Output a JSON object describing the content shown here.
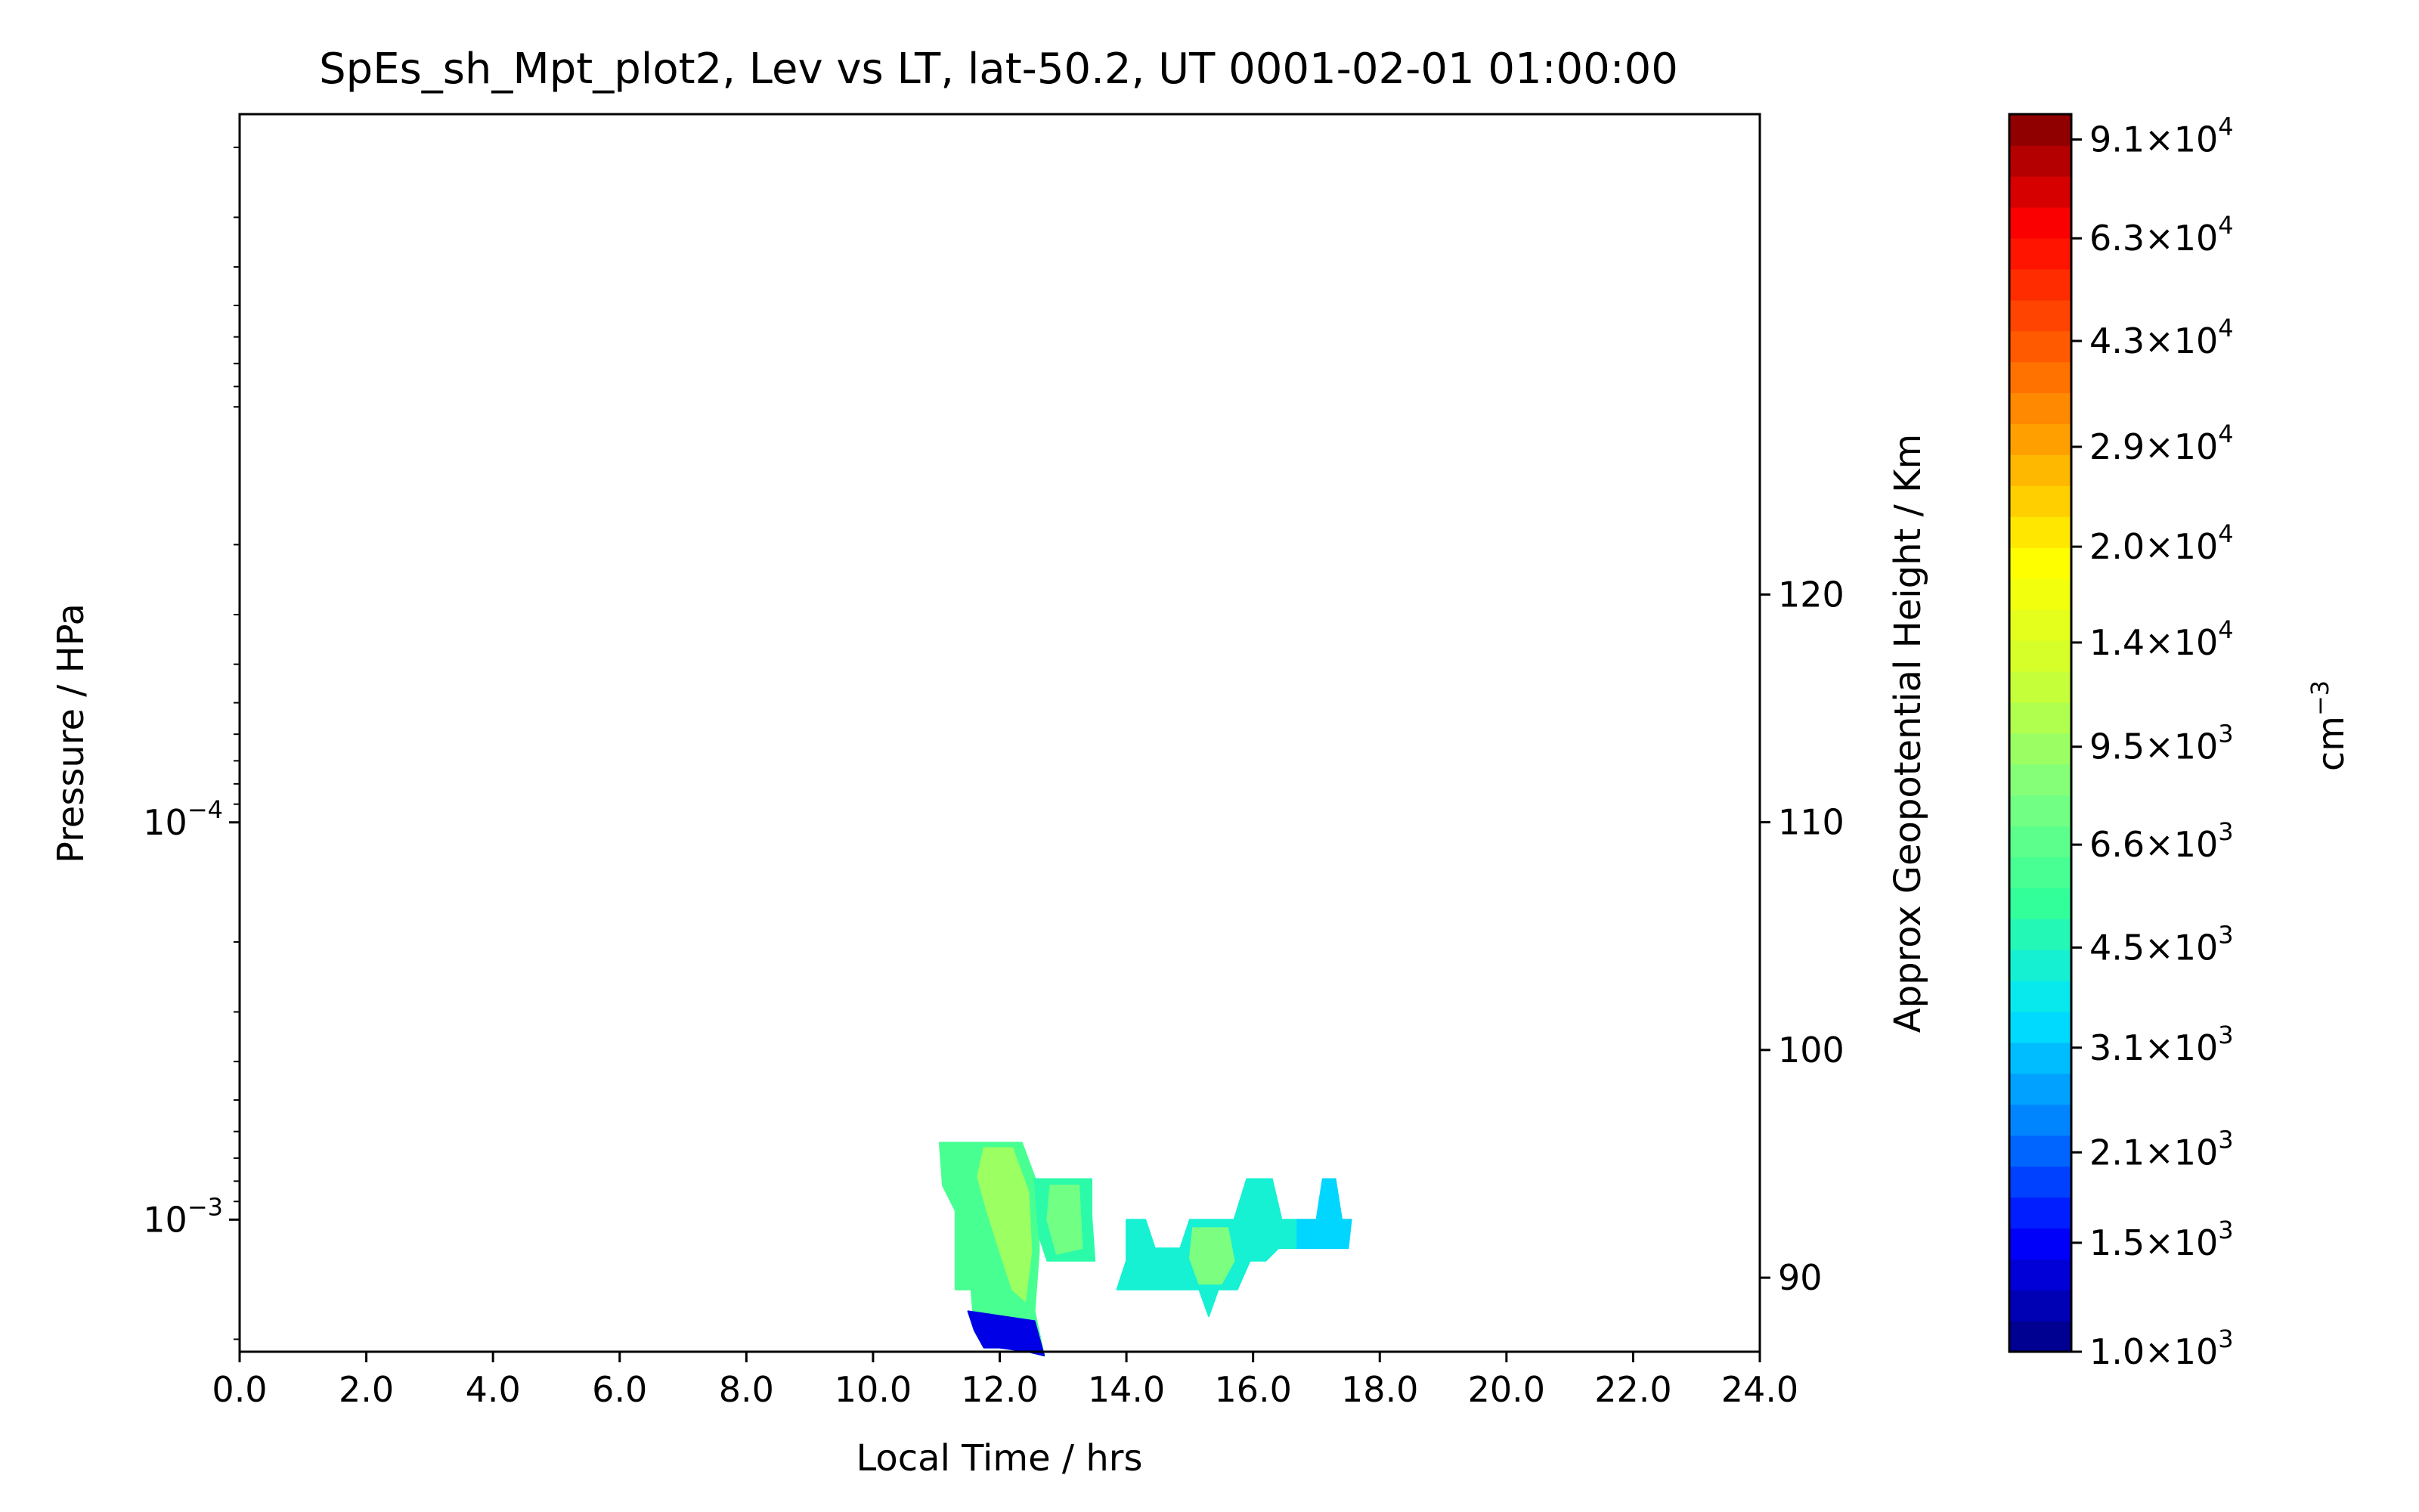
{
  "chart_data": {
    "type": "heatmap",
    "title": "SpEs_sh_Mpt_plot2, Lev vs LT, lat-50.2, UT 0001-02-01 01:00:00",
    "xlabel": "Local Time / hrs",
    "ylabel": "Pressure / HPa",
    "y2label": "Approx Geopotential Height / Km",
    "colorbar_label": "cm",
    "colorbar_label_exp": "−3",
    "xlim": [
      0,
      24
    ],
    "x_ticks": [
      "0.0",
      "2.0",
      "4.0",
      "6.0",
      "8.0",
      "10.0",
      "12.0",
      "14.0",
      "16.0",
      "18.0",
      "20.0",
      "22.0",
      "24.0"
    ],
    "y_scale": "log",
    "ylim": [
      0.00215,
      1.65e-06
    ],
    "y_ticks": [
      {
        "value": 0.0001,
        "base": "10",
        "exp": "−4"
      },
      {
        "value": 0.001,
        "base": "10",
        "exp": "−3"
      }
    ],
    "y2_ticks": [
      {
        "value": 120,
        "label": "120"
      },
      {
        "value": 110,
        "label": "110"
      },
      {
        "value": 100,
        "label": "100"
      },
      {
        "value": 90,
        "label": "90"
      }
    ],
    "y2_ref": [
      {
        "height": 120,
        "pressure": 2.67e-05
      },
      {
        "height": 90,
        "pressure": 0.0014
      }
    ],
    "colorbar": {
      "scale": "log",
      "range": [
        1000,
        100000
      ],
      "ticks": [
        {
          "value": 91000,
          "mant": "9.1",
          "exp": "4"
        },
        {
          "value": 63000,
          "mant": "6.3",
          "exp": "4"
        },
        {
          "value": 43000,
          "mant": "4.3",
          "exp": "4"
        },
        {
          "value": 29000,
          "mant": "2.9",
          "exp": "4"
        },
        {
          "value": 20000,
          "mant": "2.0",
          "exp": "4"
        },
        {
          "value": 14000,
          "mant": "1.4",
          "exp": "4"
        },
        {
          "value": 9500,
          "mant": "9.5",
          "exp": "3"
        },
        {
          "value": 6600,
          "mant": "6.6",
          "exp": "3"
        },
        {
          "value": 4500,
          "mant": "4.5",
          "exp": "3"
        },
        {
          "value": 3100,
          "mant": "3.1",
          "exp": "3"
        },
        {
          "value": 2100,
          "mant": "2.1",
          "exp": "3"
        },
        {
          "value": 1500,
          "mant": "1.5",
          "exp": "3"
        },
        {
          "value": 1000,
          "mant": "1.0",
          "exp": "3"
        }
      ],
      "colors": [
        "#00007f",
        "#0000ff",
        "#007fff",
        "#00e5ff",
        "#33ff99",
        "#7fff7f",
        "#ccff33",
        "#ffff00",
        "#ffaa00",
        "#ff5500",
        "#ff0000",
        "#7f0000"
      ]
    },
    "regions": [
      {
        "name": "patch-a",
        "value": 6000,
        "points": [
          [
            11.05,
            0.00064
          ],
          [
            12.35,
            0.00064
          ],
          [
            12.6,
            0.00082
          ],
          [
            12.62,
            0.0012
          ],
          [
            12.55,
            0.0017
          ],
          [
            12.7,
            0.0022
          ],
          [
            12.45,
            0.00215
          ],
          [
            12.0,
            0.0021
          ],
          [
            11.75,
            0.0021
          ],
          [
            11.6,
            0.0019
          ],
          [
            11.55,
            0.0015
          ],
          [
            11.3,
            0.0015
          ],
          [
            11.3,
            0.00095
          ],
          [
            11.1,
            0.00082
          ]
        ]
      },
      {
        "name": "patch-a-core",
        "value": 9500,
        "points": [
          [
            11.75,
            0.00066
          ],
          [
            12.2,
            0.00066
          ],
          [
            12.45,
            0.00085
          ],
          [
            12.5,
            0.0012
          ],
          [
            12.4,
            0.0016
          ],
          [
            12.2,
            0.0015
          ],
          [
            12.0,
            0.0012
          ],
          [
            11.8,
            0.00095
          ],
          [
            11.65,
            0.00078
          ]
        ]
      },
      {
        "name": "patch-a-base",
        "value": 1400,
        "points": [
          [
            11.5,
            0.0017
          ],
          [
            12.55,
            0.0018
          ],
          [
            12.7,
            0.0022
          ],
          [
            12.45,
            0.00215
          ],
          [
            12.0,
            0.0021
          ],
          [
            11.75,
            0.0021
          ],
          [
            11.6,
            0.0019
          ]
        ]
      },
      {
        "name": "patch-b",
        "value": 5000,
        "points": [
          [
            12.55,
            0.00079
          ],
          [
            13.45,
            0.00079
          ],
          [
            13.45,
            0.00098
          ],
          [
            13.5,
            0.00127
          ],
          [
            12.75,
            0.00127
          ],
          [
            12.62,
            0.0011
          ]
        ]
      },
      {
        "name": "patch-b-core",
        "value": 7500,
        "points": [
          [
            12.8,
            0.00082
          ],
          [
            13.25,
            0.00082
          ],
          [
            13.3,
            0.00118
          ],
          [
            12.9,
            0.00122
          ],
          [
            12.75,
            0.001
          ]
        ]
      },
      {
        "name": "patch-c",
        "value": 4200,
        "points": [
          [
            14.0,
            0.001
          ],
          [
            14.3,
            0.001
          ],
          [
            14.45,
            0.00118
          ],
          [
            14.85,
            0.00118
          ],
          [
            15.0,
            0.001
          ],
          [
            15.7,
            0.001
          ],
          [
            15.9,
            0.00079
          ],
          [
            16.3,
            0.00079
          ],
          [
            16.45,
            0.001
          ],
          [
            16.7,
            0.001
          ],
          [
            16.7,
            0.00118
          ],
          [
            16.4,
            0.00118
          ],
          [
            16.2,
            0.00127
          ],
          [
            15.95,
            0.00127
          ],
          [
            15.75,
            0.0015
          ],
          [
            15.45,
            0.0015
          ],
          [
            15.3,
            0.00175
          ],
          [
            15.15,
            0.0015
          ],
          [
            13.85,
            0.0015
          ],
          [
            14.0,
            0.00127
          ]
        ]
      },
      {
        "name": "patch-c-core",
        "value": 8000,
        "points": [
          [
            15.05,
            0.00105
          ],
          [
            15.6,
            0.00105
          ],
          [
            15.7,
            0.00127
          ],
          [
            15.5,
            0.00145
          ],
          [
            15.15,
            0.00145
          ],
          [
            15.0,
            0.00125
          ]
        ]
      },
      {
        "name": "patch-d",
        "value": 3300,
        "points": [
          [
            16.7,
            0.001
          ],
          [
            17.0,
            0.001
          ],
          [
            17.1,
            0.00079
          ],
          [
            17.3,
            0.00079
          ],
          [
            17.4,
            0.001
          ],
          [
            17.55,
            0.001
          ],
          [
            17.5,
            0.00118
          ],
          [
            16.7,
            0.00118
          ]
        ]
      }
    ]
  }
}
